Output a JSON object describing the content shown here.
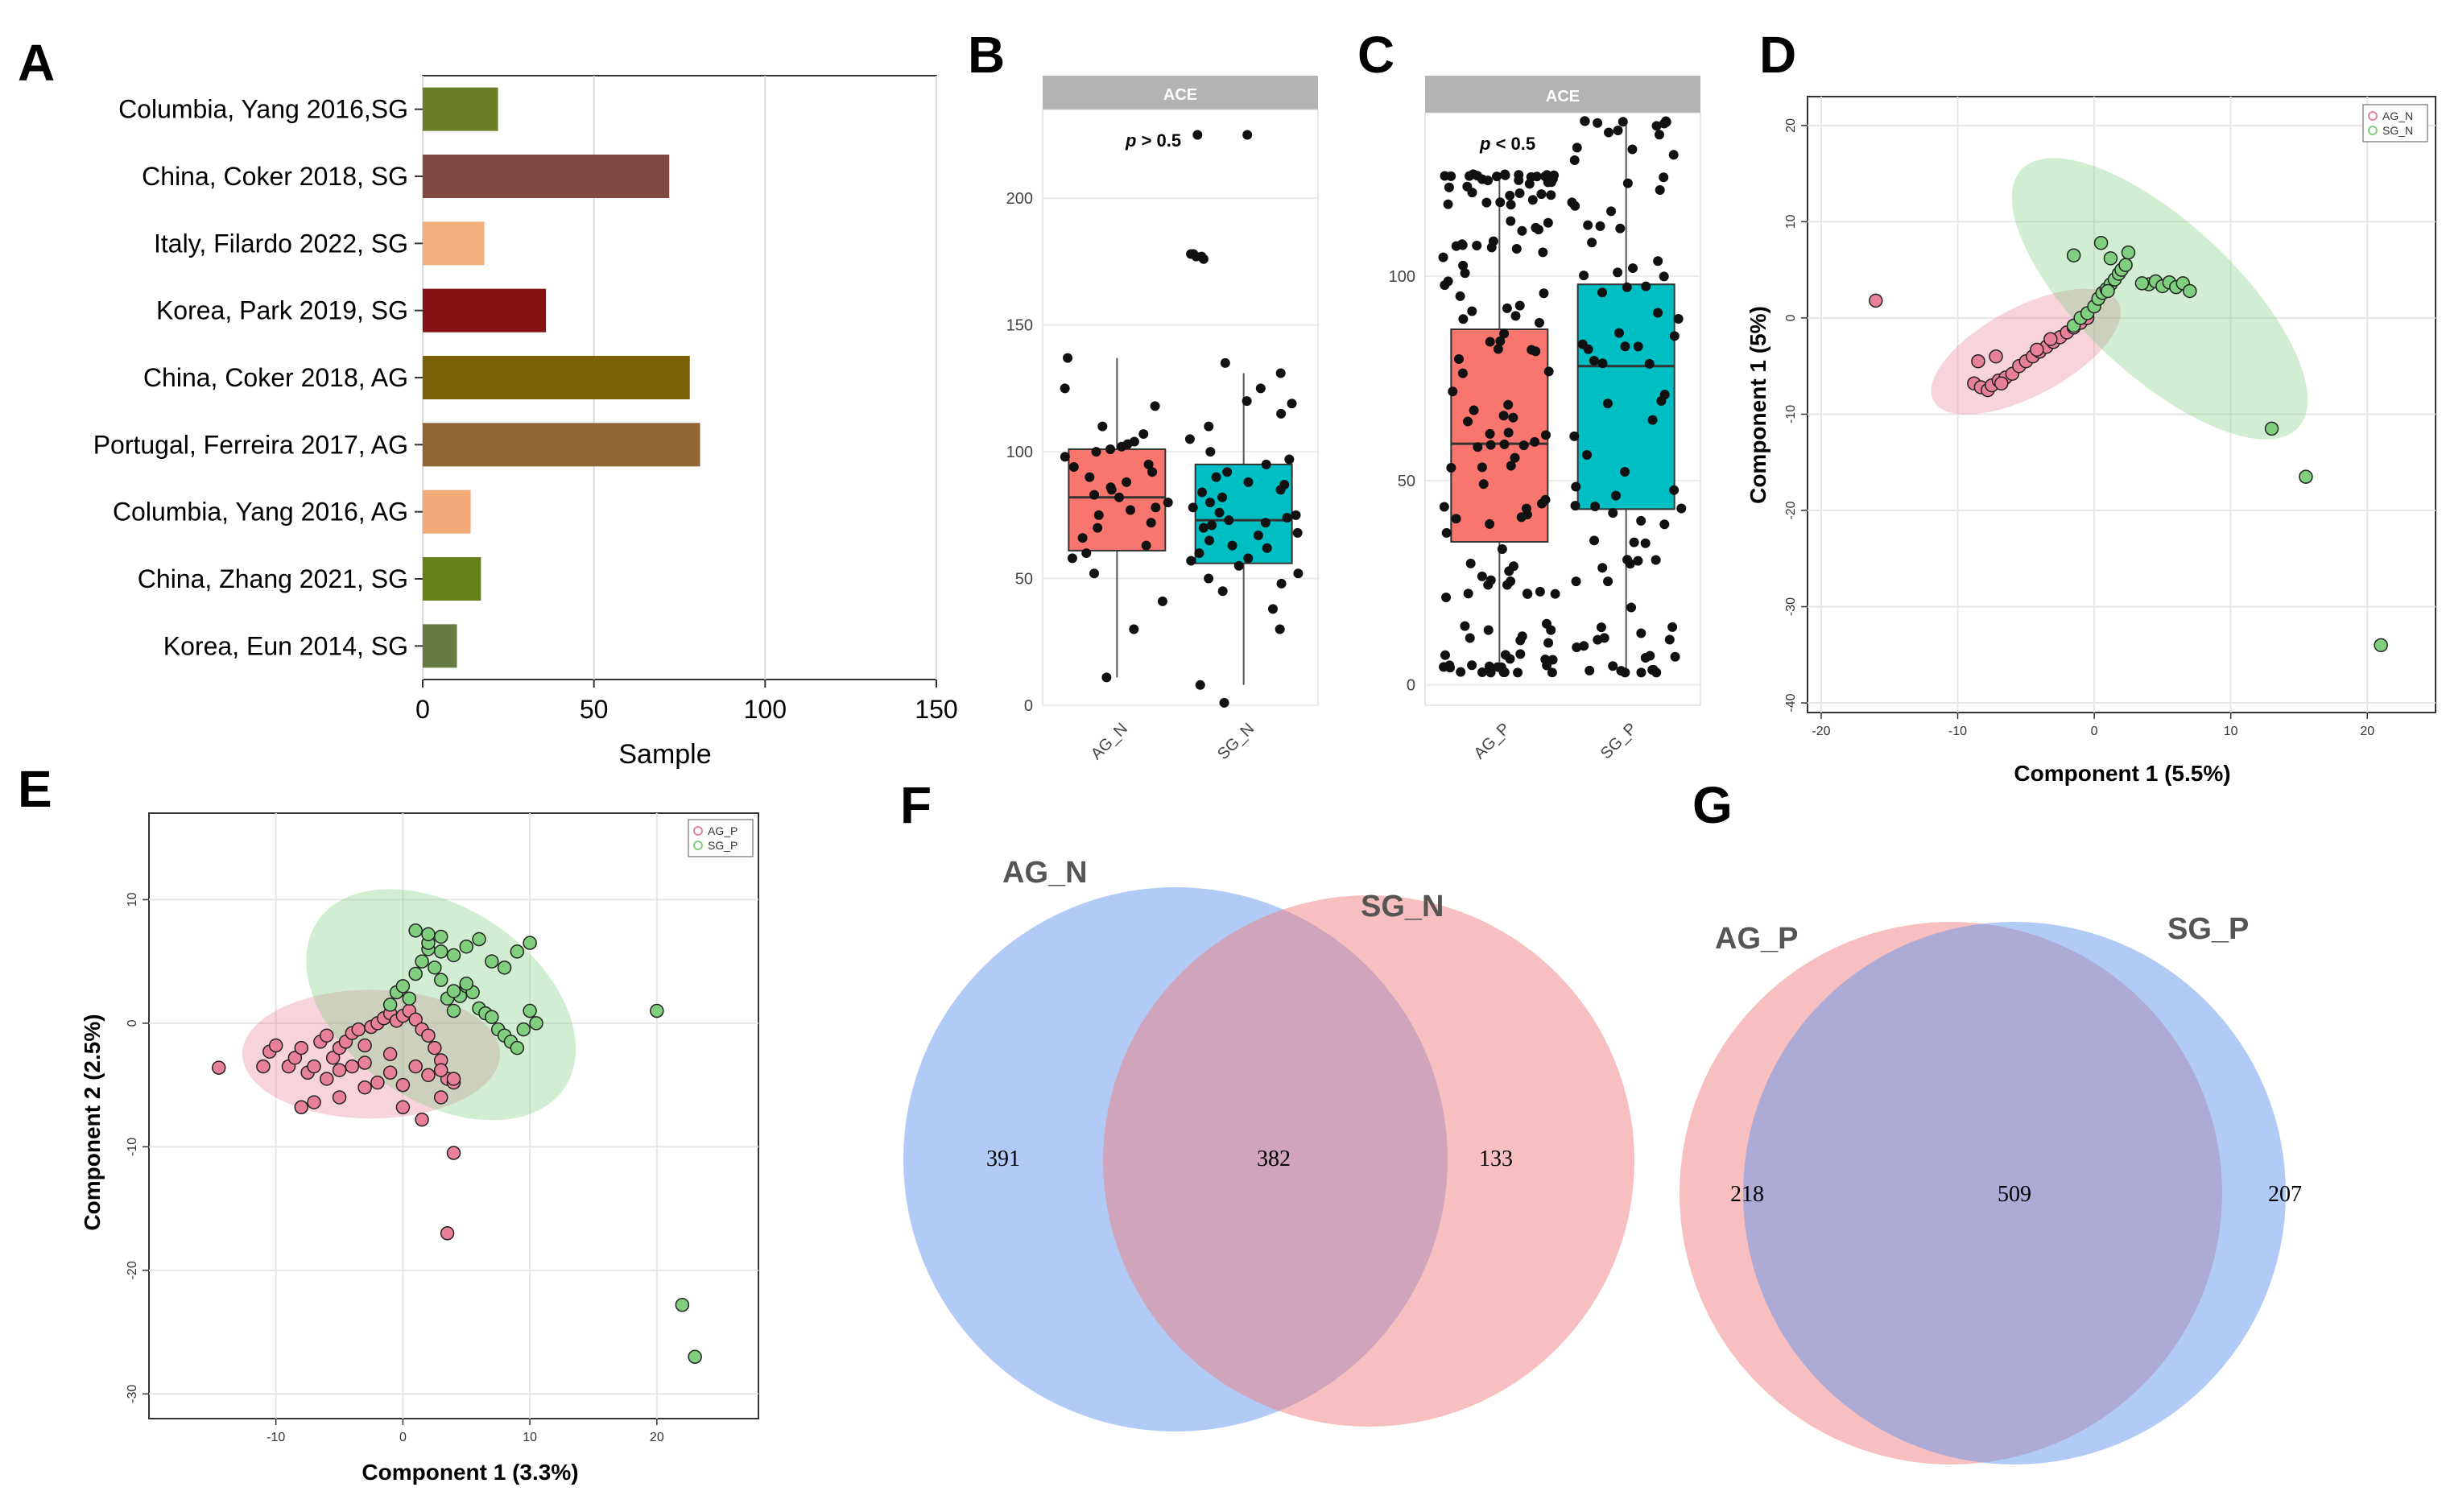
{
  "panels": [
    {
      "id": "A",
      "label": "A"
    },
    {
      "id": "B",
      "label": "B"
    },
    {
      "id": "C",
      "label": "C"
    },
    {
      "id": "D",
      "label": "D"
    },
    {
      "id": "E",
      "label": "E"
    },
    {
      "id": "F",
      "label": "F"
    },
    {
      "id": "G",
      "label": "G"
    }
  ],
  "chart_data": [
    {
      "panel": "A",
      "type": "bar",
      "orientation": "horizontal",
      "categories": [
        "Columbia, Yang 2016,SG",
        "China, Coker 2018, SG",
        "Italy, Filardo 2022, SG",
        "Korea, Park 2019, SG",
        "China, Coker 2018, AG",
        "Portugal, Ferreira 2017, AG",
        "Columbia, Yang 2016, AG",
        "China, Zhang 2021, SG",
        "Korea, Eun 2014, SG"
      ],
      "values": [
        22,
        72,
        18,
        36,
        78,
        81,
        14,
        17,
        10
      ],
      "colors": [
        "#6b7f26",
        "#7f4a42",
        "#f4b07c",
        "#851313",
        "#7a6008",
        "#906533",
        "#f2aa78",
        "#67801b",
        "#677b42"
      ],
      "xlabel": "Sample",
      "xlim": [
        0,
        150
      ],
      "xticks": [
        0,
        50,
        100,
        150
      ]
    },
    {
      "panel": "B",
      "type": "box",
      "strip": "ACE",
      "annotation_italic": "p",
      "annotation_rest": " > 0.5",
      "categories": [
        "AG_N",
        "SG_N"
      ],
      "colors": [
        "#f8766d",
        "#00bfc4"
      ],
      "ylim": [
        0,
        235
      ],
      "yticks": [
        0,
        50,
        100,
        150,
        200
      ],
      "boxes": [
        {
          "name": "AG_N",
          "min": 11,
          "q1": 61,
          "median": 82,
          "q3": 101,
          "max": 137
        },
        {
          "name": "SG_N",
          "min": 8,
          "q1": 56,
          "median": 73,
          "q3": 95,
          "max": 131
        }
      ],
      "points": [
        [
          30,
          41,
          52,
          58,
          60,
          63,
          66,
          70,
          72,
          75,
          77,
          78,
          80,
          82,
          83,
          85,
          86,
          88,
          90,
          92,
          94,
          95,
          98,
          100,
          101,
          102,
          103,
          104,
          107,
          110,
          118,
          125,
          137,
          11
        ],
        [
          1,
          8,
          30,
          38,
          45,
          48,
          50,
          52,
          55,
          57,
          58,
          60,
          62,
          63,
          65,
          67,
          68,
          70,
          71,
          72,
          73,
          74,
          75,
          76,
          78,
          80,
          82,
          84,
          85,
          87,
          88,
          90,
          92,
          95,
          97,
          100,
          105,
          110,
          115,
          119,
          120,
          125,
          131,
          135,
          177,
          176,
          178,
          225
        ]
      ],
      "extra_points_AG": [
        225,
        178,
        177
      ]
    },
    {
      "panel": "C",
      "type": "box",
      "strip": "ACE",
      "annotation_italic": "p",
      "annotation_rest": " < 0.5",
      "categories": [
        "AG_P",
        "SG_P"
      ],
      "colors": [
        "#f8766d",
        "#00bfc4"
      ],
      "ylim": [
        -5,
        140
      ],
      "yticks": [
        0,
        50,
        100
      ],
      "boxes": [
        {
          "name": "AG_P",
          "min": 3,
          "q1": 35,
          "median": 59,
          "q3": 87,
          "max": 125
        },
        {
          "name": "SG_P",
          "min": 3,
          "q1": 43,
          "median": 78,
          "q3": 98,
          "max": 138
        }
      ]
    },
    {
      "panel": "D",
      "type": "scatter",
      "xlabel": "Component 1 (5.5%)",
      "ylabel": "Component 1 (5%)",
      "xlim": [
        -21,
        25
      ],
      "ylim": [
        -41,
        23
      ],
      "xticks": [
        -20,
        -10,
        0,
        10,
        20
      ],
      "yticks": [
        -40,
        -30,
        -20,
        -10,
        0,
        10,
        20
      ],
      "legend": [
        "AG_N",
        "SG_N"
      ],
      "legend_position": "top-right",
      "series": [
        {
          "name": "AG_N",
          "color": "#e8809a",
          "x": [
            -16,
            -8.8,
            -8.3,
            -7.8,
            -7.5,
            -7,
            -6.5,
            -6,
            -5.5,
            -5,
            -4.5,
            -4,
            -3.5,
            -3,
            -2.5,
            -2,
            -1.5,
            -1,
            -0.5,
            -8.5,
            -7.2,
            -6.8,
            -4.2,
            -3.2
          ],
          "y": [
            1.8,
            -6.8,
            -7.2,
            -7.5,
            -7,
            -6.5,
            -6.2,
            -5.8,
            -5,
            -4.5,
            -4,
            -3.5,
            -3,
            -2.5,
            -2,
            -1.5,
            -1,
            -0.5,
            0,
            -4.5,
            -4,
            -6.8,
            -3.3,
            -2.2
          ]
        },
        {
          "name": "SG_N",
          "color": "#7fcf7f",
          "x": [
            -1.5,
            -1,
            -0.5,
            0,
            0.3,
            0.6,
            0.9,
            1.2,
            1.5,
            1.8,
            2,
            2.3,
            1,
            0.5,
            -1.5,
            1.2,
            2.5,
            4,
            4.5,
            5,
            5.5,
            6,
            6.5,
            7,
            3.5,
            13,
            15.5,
            21
          ],
          "y": [
            -0.8,
            0,
            0.5,
            1.2,
            2,
            2.6,
            3,
            3.5,
            4,
            4.6,
            5,
            5.5,
            2.8,
            7.8,
            6.5,
            6.2,
            6.8,
            3.5,
            3.8,
            3.3,
            3.7,
            3.2,
            3.6,
            2.8,
            3.6,
            -11.5,
            -16.5,
            -34
          ]
        }
      ]
    },
    {
      "panel": "E",
      "type": "scatter",
      "xlabel": "Component 1 (3.3%)",
      "ylabel": "Component 2 (2.5%)",
      "xlim": [
        -20,
        28
      ],
      "ylim": [
        -32,
        17
      ],
      "xticks": [
        -10,
        0,
        10,
        20
      ],
      "yticks": [
        -30,
        -20,
        -10,
        0,
        10
      ],
      "legend": [
        "AG_P",
        "SG_P"
      ],
      "legend_position": "top-right",
      "series": [
        {
          "name": "AG_P",
          "color": "#e8809a",
          "x": [
            -14.5,
            -11,
            -10.5,
            -10,
            -9,
            -8.5,
            -8,
            -7.5,
            -7,
            -6.5,
            -6,
            -5.5,
            -5,
            -4.5,
            -4,
            -3.5,
            -3,
            -2.5,
            -2,
            -1.5,
            -1,
            -0.5,
            0,
            0.5,
            1,
            1.5,
            2,
            2.5,
            3,
            3.5,
            -6,
            -5,
            -4,
            -3,
            -2,
            -1,
            0,
            1,
            2,
            3,
            4,
            -8,
            -7,
            -5,
            -3,
            -1,
            0,
            1.5,
            3,
            4,
            3.5,
            4
          ],
          "y": [
            -3.6,
            -3.5,
            -2.3,
            -1.8,
            -3.5,
            -2.8,
            -2,
            -4,
            -3.5,
            -1.5,
            -1,
            -2.8,
            -2,
            -1.5,
            -0.8,
            -0.5,
            -1.8,
            -0.3,
            0,
            0.4,
            0.8,
            0.2,
            0.6,
            1,
            0.3,
            -0.5,
            -1,
            -2,
            -3,
            -4.5,
            -4.5,
            -3.8,
            -3.5,
            -3.2,
            -4.8,
            -2.5,
            -5,
            -3.5,
            -4.2,
            -6,
            -4.8,
            -6.8,
            -6.4,
            -6,
            -5.2,
            -4,
            -6.8,
            -7.8,
            -3.8,
            -4.5,
            -17,
            -10.5
          ]
        },
        {
          "name": "SG_P",
          "color": "#7fcf7f",
          "x": [
            -1,
            -0.5,
            0,
            0.5,
            1,
            1.5,
            2,
            2.5,
            3,
            3.5,
            4,
            4.5,
            5,
            5.5,
            6,
            6.5,
            7,
            7.5,
            8,
            8.5,
            9,
            9.5,
            10,
            10.5,
            2,
            3,
            4,
            5,
            6,
            7,
            8,
            9,
            10,
            20,
            22,
            23,
            1,
            2,
            3,
            4,
            5
          ],
          "y": [
            1.5,
            2.5,
            3,
            2,
            4,
            5,
            6,
            4.5,
            3.5,
            2,
            1,
            2.2,
            3,
            2.5,
            1.2,
            0.8,
            0.5,
            -0.5,
            -1,
            -1.5,
            -2,
            -0.5,
            1,
            0,
            6.5,
            7,
            5.5,
            6.2,
            6.8,
            5,
            4.5,
            5.8,
            6.5,
            1,
            -22.8,
            -27,
            7.5,
            7.2,
            5.8,
            2.6,
            3.2
          ]
        }
      ]
    },
    {
      "panel": "F",
      "type": "venn",
      "sets": [
        "AG_N",
        "SG_N"
      ],
      "colors": [
        "#6495ed",
        "#f08080"
      ],
      "values": {
        "left_only": "391",
        "intersection": "382",
        "right_only": "133"
      }
    },
    {
      "panel": "G",
      "type": "venn",
      "sets": [
        "AG_P",
        "SG_P"
      ],
      "colors": [
        "#f08080",
        "#6495ed"
      ],
      "values": {
        "left_only": "218",
        "intersection": "509",
        "right_only": "207"
      }
    }
  ]
}
